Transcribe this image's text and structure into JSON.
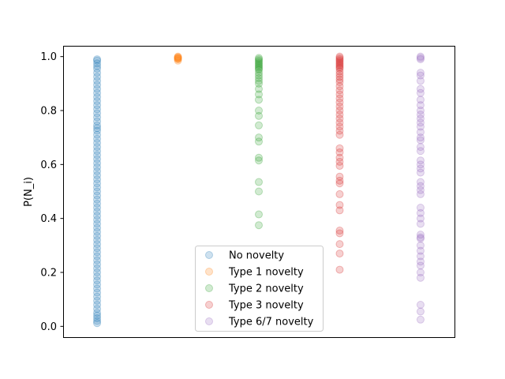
{
  "chart_data": {
    "type": "scatter",
    "ylabel": "P(N_i)",
    "xlabel": "",
    "ylim": [
      -0.04,
      1.04
    ],
    "yticks": [
      "0.0",
      "0.2",
      "0.4",
      "0.6",
      "0.8",
      "1.0"
    ],
    "xticks_visible": false,
    "grid": false,
    "legend_position": "lower-center",
    "marker_opacity": 0.22,
    "series": [
      {
        "name": "No novelty",
        "color": "#1f77b4",
        "x": 0,
        "values": [
          0.99,
          0.985,
          0.975,
          0.965,
          0.955,
          0.94,
          0.925,
          0.91,
          0.895,
          0.88,
          0.865,
          0.85,
          0.835,
          0.82,
          0.805,
          0.79,
          0.775,
          0.76,
          0.745,
          0.735,
          0.725,
          0.71,
          0.695,
          0.68,
          0.665,
          0.65,
          0.635,
          0.62,
          0.605,
          0.59,
          0.575,
          0.56,
          0.545,
          0.53,
          0.515,
          0.5,
          0.485,
          0.47,
          0.455,
          0.44,
          0.425,
          0.41,
          0.395,
          0.38,
          0.365,
          0.35,
          0.335,
          0.32,
          0.305,
          0.29,
          0.275,
          0.26,
          0.245,
          0.23,
          0.215,
          0.2,
          0.185,
          0.17,
          0.155,
          0.14,
          0.125,
          0.11,
          0.095,
          0.08,
          0.065,
          0.05,
          0.04,
          0.03,
          0.02,
          0.012
        ]
      },
      {
        "name": "Type 1 novelty",
        "color": "#ff7f0e",
        "x": 1,
        "values": [
          1.0,
          0.998,
          0.996,
          0.994,
          0.992,
          0.99,
          0.985
        ]
      },
      {
        "name": "Type 2 novelty",
        "color": "#2ca02c",
        "x": 2,
        "values": [
          0.995,
          0.99,
          0.985,
          0.98,
          0.975,
          0.97,
          0.965,
          0.96,
          0.955,
          0.95,
          0.94,
          0.93,
          0.92,
          0.91,
          0.9,
          0.88,
          0.86,
          0.84,
          0.8,
          0.78,
          0.745,
          0.7,
          0.685,
          0.625,
          0.615,
          0.535,
          0.5,
          0.415,
          0.375
        ]
      },
      {
        "name": "Type 3 novelty",
        "color": "#d62728",
        "x": 3,
        "values": [
          1.0,
          0.995,
          0.99,
          0.985,
          0.98,
          0.975,
          0.97,
          0.965,
          0.96,
          0.955,
          0.945,
          0.935,
          0.925,
          0.915,
          0.905,
          0.89,
          0.875,
          0.86,
          0.845,
          0.83,
          0.815,
          0.8,
          0.785,
          0.77,
          0.755,
          0.74,
          0.725,
          0.71,
          0.66,
          0.645,
          0.625,
          0.61,
          0.595,
          0.555,
          0.54,
          0.53,
          0.49,
          0.45,
          0.43,
          0.355,
          0.345,
          0.305,
          0.27,
          0.21
        ]
      },
      {
        "name": "Type 6/7 novelty",
        "color": "#9467bd",
        "x": 4,
        "values": [
          1.0,
          0.995,
          0.99,
          0.94,
          0.93,
          0.91,
          0.88,
          0.865,
          0.84,
          0.82,
          0.8,
          0.785,
          0.77,
          0.755,
          0.74,
          0.72,
          0.7,
          0.69,
          0.665,
          0.65,
          0.615,
          0.6,
          0.585,
          0.57,
          0.535,
          0.52,
          0.505,
          0.49,
          0.44,
          0.42,
          0.4,
          0.38,
          0.34,
          0.33,
          0.325,
          0.3,
          0.28,
          0.26,
          0.24,
          0.225,
          0.2,
          0.18,
          0.08,
          0.055,
          0.025
        ]
      }
    ]
  }
}
